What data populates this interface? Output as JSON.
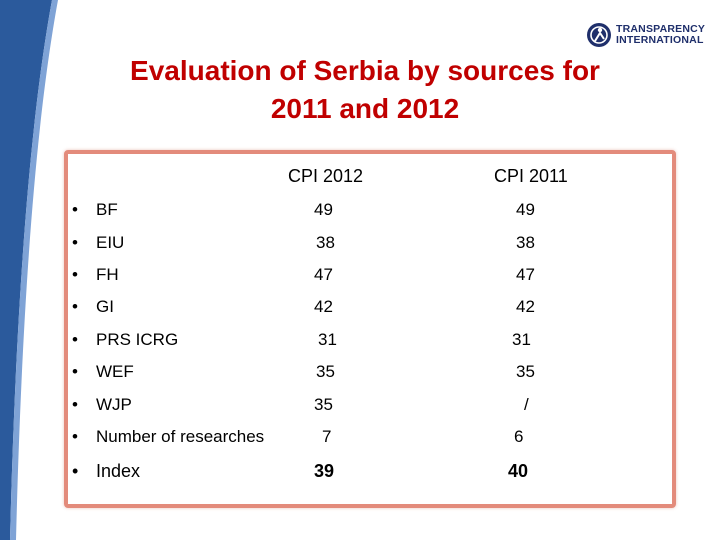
{
  "title_line1": "Evaluation of Serbia by sources for",
  "title_line2": "2011 and 2012",
  "logo": {
    "line1": "TRANSPARENCY",
    "line2": "INTERNATIONAL",
    "icon": "globe-figure-icon"
  },
  "colors": {
    "title": "#c00000",
    "panel_border": "#e38b7b",
    "stripe": "#2b5a9c",
    "logo": "#1f2f6b"
  },
  "table": {
    "columns": [
      "CPI 2012",
      "CPI 2011"
    ],
    "rows": [
      {
        "label": "BF",
        "cpi2012": "49",
        "cpi2011": "49"
      },
      {
        "label": "EIU",
        "cpi2012": "38",
        "cpi2011": "38"
      },
      {
        "label": "FH",
        "cpi2012": "47",
        "cpi2011": "47"
      },
      {
        "label": "GI",
        "cpi2012": "42",
        "cpi2011": "42"
      },
      {
        "label": "PRS ICRG",
        "cpi2012": "31",
        "cpi2011": "31"
      },
      {
        "label": "WEF",
        "cpi2012": "35",
        "cpi2011": "35"
      },
      {
        "label": "WJP",
        "cpi2012": "35",
        "cpi2011": "/"
      },
      {
        "label": "Number of researches",
        "cpi2012": "7",
        "cpi2011": "6"
      },
      {
        "label": "Index",
        "cpi2012": "39",
        "cpi2011": "40"
      }
    ]
  }
}
